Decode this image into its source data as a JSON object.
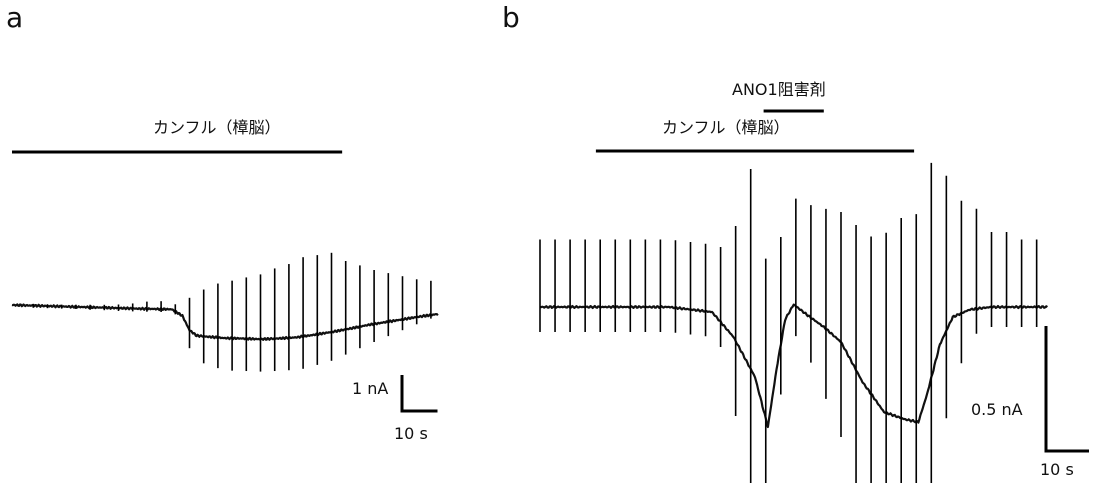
{
  "chart_data": [
    {
      "type": "line",
      "panel": "a",
      "treatment_bars": [
        {
          "label": "カンフル（樟脳）",
          "start_s": 0,
          "end_s": 93
        }
      ],
      "scale_bar": {
        "current_label": "1 nA",
        "current_nA": 1,
        "time_label": "10 s",
        "time_s": 10
      },
      "baseline_trace": {
        "time_s": [
          0,
          35,
          45,
          48,
          50,
          52,
          55,
          60,
          65,
          70,
          75,
          80,
          85,
          90,
          95,
          100,
          105,
          110,
          115,
          120
        ],
        "current_nA": [
          0,
          -0.1,
          -0.12,
          -0.3,
          -0.7,
          -0.85,
          -0.88,
          -0.92,
          -0.93,
          -0.95,
          -0.93,
          -0.9,
          -0.83,
          -0.75,
          -0.66,
          -0.56,
          -0.48,
          -0.4,
          -0.32,
          -0.25
        ]
      },
      "pulse_times_s": [
        6,
        10,
        14,
        18,
        22,
        26,
        30,
        34,
        38,
        42,
        46,
        50,
        54,
        58,
        62,
        66,
        70,
        74,
        78,
        82,
        86,
        90,
        94,
        98,
        102,
        106,
        110,
        114,
        118
      ],
      "pulse_up_nA": [
        0.05,
        0.05,
        0.05,
        0.06,
        0.07,
        0.08,
        0.1,
        0.14,
        0.2,
        0.22,
        0.2,
        0.9,
        1.3,
        1.5,
        1.6,
        1.7,
        1.8,
        1.95,
        2.05,
        2.2,
        2.2,
        2.2,
        1.9,
        1.7,
        1.5,
        1.35,
        1.2,
        1.05,
        0.95
      ],
      "pulse_down_nA": [
        0.06,
        0.06,
        0.06,
        0.06,
        0.07,
        0.07,
        0.08,
        0.08,
        0.08,
        0.08,
        0.08,
        0.5,
        0.75,
        0.85,
        0.9,
        0.9,
        0.9,
        0.9,
        0.9,
        0.9,
        0.85,
        0.8,
        0.7,
        0.6,
        0.5,
        0.4,
        0.3,
        0.2,
        0.1
      ]
    },
    {
      "type": "line",
      "panel": "b",
      "treatment_bars": [
        {
          "label": "カンフル（樟脳）",
          "start_s": 13,
          "end_s": 87
        },
        {
          "label": "ANO1阻害剤",
          "start_s": 52,
          "end_s": 66
        }
      ],
      "scale_bar": {
        "current_label": "0.5 nA",
        "current_nA": 0.5,
        "time_label": "10 s",
        "time_s": 10
      },
      "baseline_trace": {
        "time_s": [
          0,
          30,
          40,
          45,
          50,
          53,
          55,
          57,
          59,
          62,
          66,
          70,
          75,
          80,
          85,
          88,
          90,
          93,
          96,
          100,
          105,
          110,
          115,
          118
        ],
        "current_nA": [
          0,
          0,
          -0.02,
          -0.12,
          -0.28,
          -0.48,
          -0.25,
          -0.05,
          0.01,
          -0.03,
          -0.08,
          -0.14,
          -0.3,
          -0.42,
          -0.45,
          -0.46,
          -0.35,
          -0.15,
          -0.04,
          -0.01,
          0,
          0,
          0,
          0
        ]
      },
      "pulse_times_s": [
        0,
        3.5,
        7,
        10.5,
        14,
        17.5,
        21,
        24.5,
        28,
        31.5,
        35,
        38.5,
        42,
        45.5,
        49,
        52.5,
        56,
        59.5,
        63,
        66.5,
        70,
        73.5,
        77,
        80.5,
        84,
        87.5,
        91,
        94.5,
        98,
        101.5,
        105,
        108.5,
        112,
        115.5
      ],
      "pulse_up_nA": [
        0.27,
        0.27,
        0.27,
        0.27,
        0.27,
        0.27,
        0.27,
        0.27,
        0.27,
        0.27,
        0.27,
        0.27,
        0.3,
        0.46,
        0.8,
        0.64,
        0.43,
        0.43,
        0.45,
        0.48,
        0.52,
        0.58,
        0.63,
        0.72,
        0.8,
        0.83,
        0.86,
        0.62,
        0.45,
        0.4,
        0.3,
        0.3,
        0.27,
        0.27
      ],
      "pulse_down_nA": [
        0.1,
        0.1,
        0.1,
        0.1,
        0.1,
        0.1,
        0.1,
        0.1,
        0.1,
        0.1,
        0.1,
        0.1,
        0.1,
        0.3,
        0.55,
        0.62,
        0.2,
        0.12,
        0.18,
        0.28,
        0.38,
        0.48,
        0.55,
        0.6,
        0.65,
        0.7,
        0.72,
        0.35,
        0.2,
        0.1,
        0.08,
        0.08,
        0.08,
        0.08
      ]
    }
  ]
}
